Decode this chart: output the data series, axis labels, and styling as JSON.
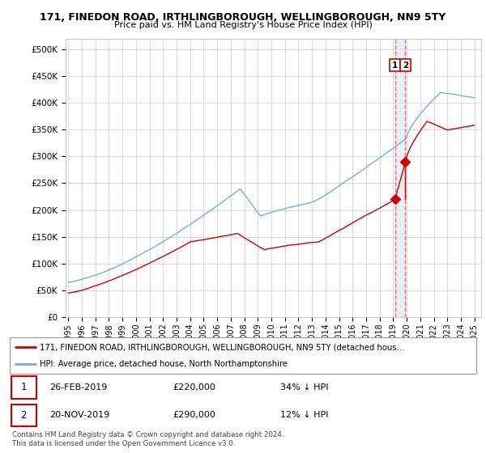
{
  "title_line1": "171, FINEDON ROAD, IRTHLINGBOROUGH, WELLINGBOROUGH, NN9 5TY",
  "title_line2": "Price paid vs. HM Land Registry's House Price Index (HPI)",
  "ylabel_ticks": [
    "£0",
    "£50K",
    "£100K",
    "£150K",
    "£200K",
    "£250K",
    "£300K",
    "£350K",
    "£400K",
    "£450K",
    "£500K"
  ],
  "ytick_values": [
    0,
    50000,
    100000,
    150000,
    200000,
    250000,
    300000,
    350000,
    400000,
    450000,
    500000
  ],
  "ylim": [
    0,
    520000
  ],
  "xlim_start": 1994.8,
  "xlim_end": 2025.5,
  "transaction1_date": 2019.13,
  "transaction1_price": 220000,
  "transaction2_date": 2019.9,
  "transaction2_price": 290000,
  "marker1_label": "1",
  "marker2_label": "2",
  "legend_line1": "171, FINEDON ROAD, IRTHLINGBOROUGH, WELLINGBOROUGH, NN9 5TY (detached hous…",
  "legend_line2": "HPI: Average price, detached house, North Northamptonshire",
  "table_row1": [
    "1",
    "26-FEB-2019",
    "£220,000",
    "34% ↓ HPI"
  ],
  "table_row2": [
    "2",
    "20-NOV-2019",
    "£290,000",
    "12% ↓ HPI"
  ],
  "footer": "Contains HM Land Registry data © Crown copyright and database right 2024.\nThis data is licensed under the Open Government Licence v3.0.",
  "hpi_color": "#7aabe0",
  "price_color": "#cc0000",
  "dashed_color": "#e87070",
  "shade_color": "#dde8f5",
  "bg_color": "#ffffff",
  "grid_color": "#cccccc"
}
